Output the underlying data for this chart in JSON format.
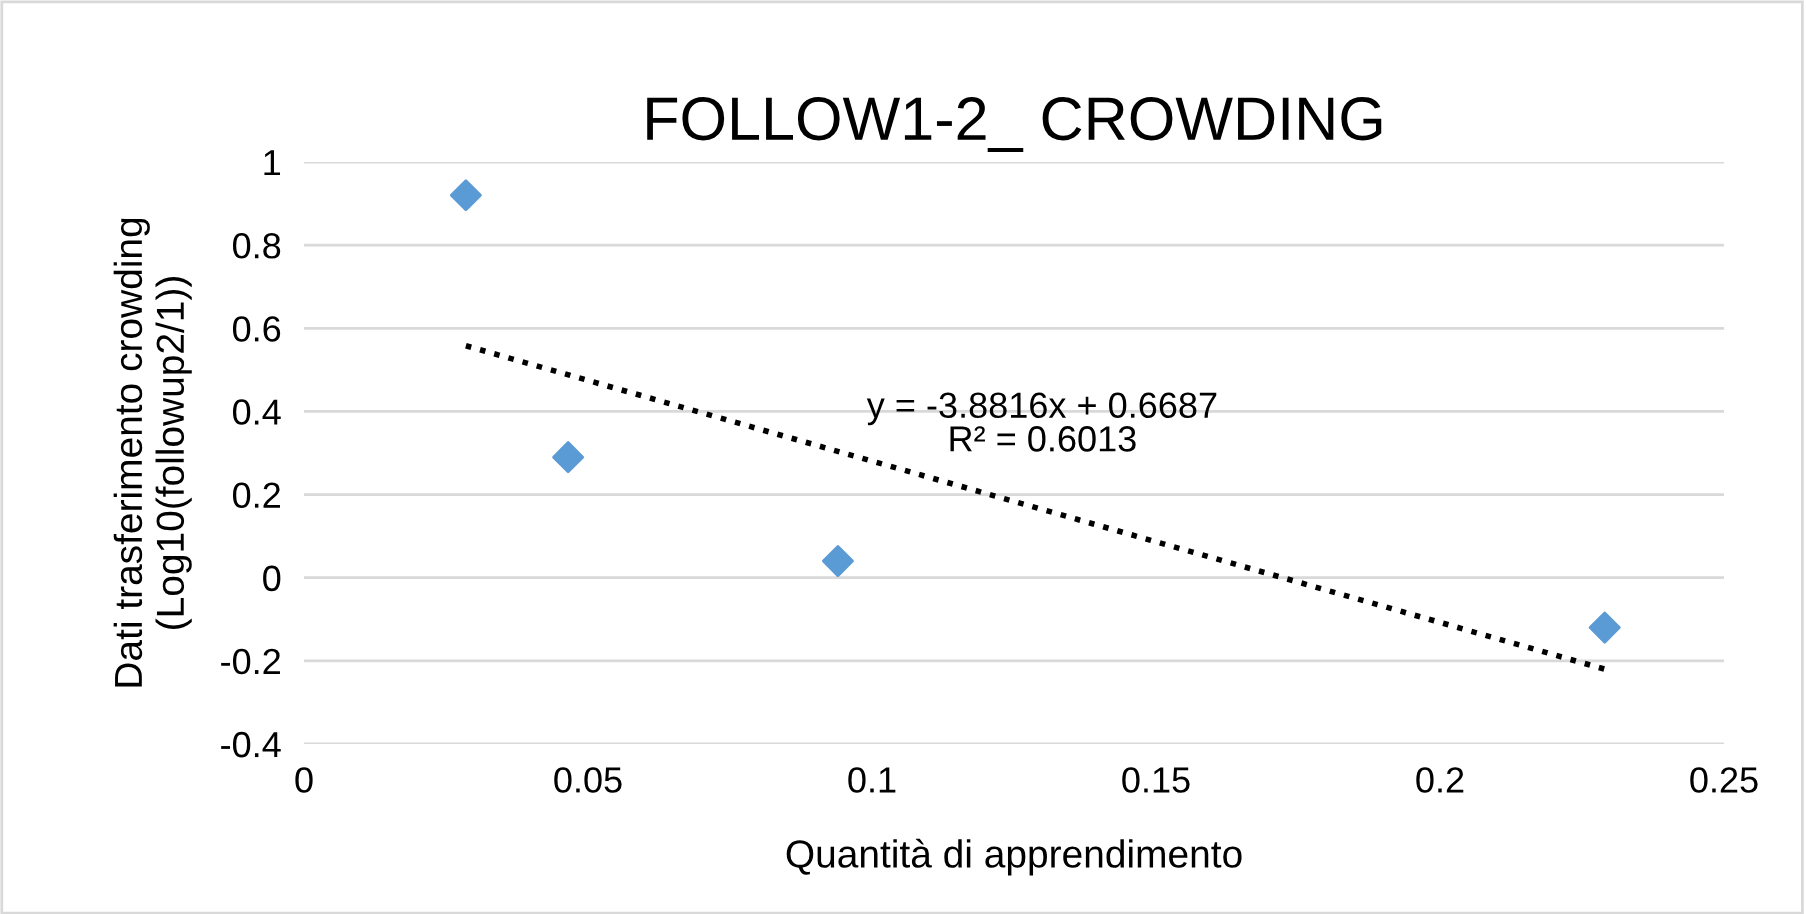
{
  "chart_data": {
    "type": "scatter",
    "title": "FOLLOW1-2_ CROWDING",
    "xlabel": "Quantità di apprendimento",
    "ylabel": "Dati trasferimento crowding\n(Log10(followup2/1))",
    "series": [
      {
        "color": "#5b9bd5",
        "marker": "diamond",
        "x": [
          0.0285,
          0.0465,
          0.094,
          0.229
        ],
        "values": [
          0.92,
          0.29,
          0.04,
          -0.12
        ]
      },
      {
        "type": "line",
        "color": "#000000",
        "marker": "none",
        "line_style": "dotted",
        "x": [
          0.0285,
          0.229
        ],
        "values": [
          0.558,
          -0.22
        ]
      }
    ],
    "annotations": [
      "y = -3.8816x + 0.6687\nR² = 0.6013"
    ],
    "xlim": [
      0,
      0.25
    ],
    "xticks": [
      0,
      0.05,
      0.1,
      0.15,
      0.2,
      0.25
    ],
    "ylim": [
      -0.4,
      1
    ],
    "yticks": [
      -0.4,
      -0.2,
      0,
      0.2,
      0.4,
      0.6,
      0.8,
      1
    ],
    "grid": "y",
    "legend": false
  }
}
